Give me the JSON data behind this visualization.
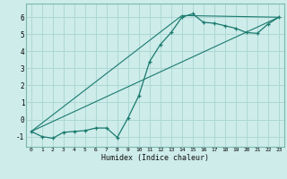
{
  "xlabel": "Humidex (Indice chaleur)",
  "background_color": "#cdecea",
  "grid_color": "#aed8d4",
  "line_color": "#1a7a6e",
  "spine_color": "#7ab8b0",
  "xlim": [
    -0.5,
    23.5
  ],
  "ylim": [
    -1.6,
    6.8
  ],
  "xticks": [
    0,
    1,
    2,
    3,
    4,
    5,
    6,
    7,
    8,
    9,
    10,
    11,
    12,
    13,
    14,
    15,
    16,
    17,
    18,
    19,
    20,
    21,
    22,
    23
  ],
  "yticks": [
    -1,
    0,
    1,
    2,
    3,
    4,
    5,
    6
  ],
  "line1_x": [
    0,
    1,
    2,
    3,
    4,
    5,
    6,
    7,
    8,
    9,
    10,
    11,
    12,
    13,
    14,
    15,
    16,
    17,
    18,
    19,
    20,
    21,
    22,
    23
  ],
  "line1_y": [
    -0.7,
    -1.0,
    -1.1,
    -0.75,
    -0.7,
    -0.65,
    -0.5,
    -0.5,
    -1.05,
    0.1,
    1.4,
    3.4,
    4.4,
    5.1,
    6.0,
    6.2,
    5.7,
    5.65,
    5.5,
    5.35,
    5.1,
    5.05,
    5.6,
    6.0
  ],
  "ref_line1_x": [
    0,
    23
  ],
  "ref_line1_y": [
    -0.7,
    6.0
  ],
  "ref_line2_x": [
    0,
    14,
    23
  ],
  "ref_line2_y": [
    -0.7,
    6.1,
    6.0
  ]
}
